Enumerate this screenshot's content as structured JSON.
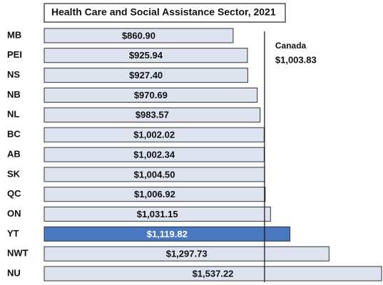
{
  "chart_data": {
    "type": "bar",
    "orientation": "horizontal",
    "title": "Health Care and Social Assistance Sector, 2021",
    "categories": [
      "MB",
      "PEI",
      "NS",
      "NB",
      "NL",
      "BC",
      "AB",
      "SK",
      "QC",
      "ON",
      "YT",
      "NWT",
      "NU"
    ],
    "values": [
      860.9,
      925.94,
      927.4,
      970.69,
      983.57,
      1002.02,
      1002.34,
      1004.5,
      1006.92,
      1031.15,
      1119.82,
      1297.73,
      1537.22
    ],
    "value_labels": [
      "$860.90",
      "$925.94",
      "$927.40",
      "$970.69",
      "$983.57",
      "$1,002.02",
      "$1,002.34",
      "$1,004.50",
      "$1,006.92",
      "$1,031.15",
      "$1,119.82",
      "$1,297.73",
      "$1,537.22"
    ],
    "colors": [
      "#dde3ef",
      "#dde3ef",
      "#dde3ef",
      "#dde3ef",
      "#dde3ef",
      "#dde3ef",
      "#dde3ef",
      "#dde3ef",
      "#dde3ef",
      "#dde3ef",
      "#4a78c0",
      "#dde3ef",
      "#dde3ef"
    ],
    "reference": {
      "label": "Canada",
      "value": 1003.83,
      "value_label": "$1,003.83"
    }
  }
}
